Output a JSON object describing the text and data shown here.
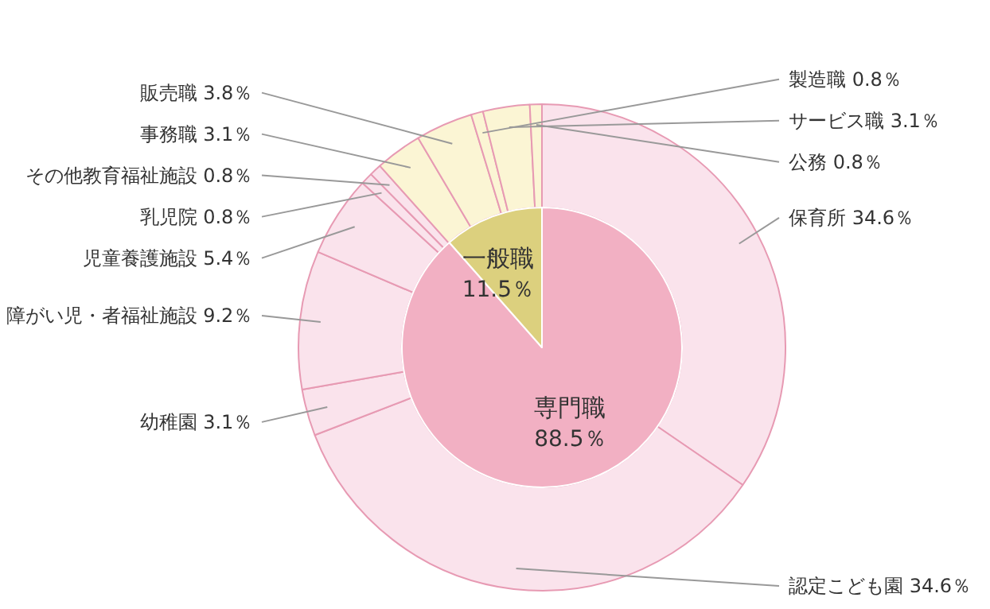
{
  "chart_data": {
    "type": "donut",
    "categories": [
      "保育所",
      "認定こども園",
      "幼稚園",
      "障がい児・者福祉施設",
      "児童養護施設",
      "乳児院",
      "その他教育福祉施設",
      "事務職",
      "販売職",
      "製造職",
      "サービス職",
      "公務",
      "専門職",
      "一般職"
    ],
    "colors": [
      "#fae3ec",
      "#fae3ec",
      "#fae3ec",
      "#fae3ec",
      "#fae3ec",
      "#fae3ec",
      "#fae3ec",
      "#fbf5d4",
      "#fbf5d4",
      "#fbf5d4",
      "#fbf5d4",
      "#fbf5d4",
      "#f2b0c3",
      "#dcd07e"
    ],
    "series": [
      {
        "values": [
          null,
          null,
          null,
          null,
          null,
          null,
          null,
          null,
          null,
          null,
          null,
          null,
          88.5,
          11.5
        ],
        "value_labels": [
          null,
          null,
          null,
          null,
          null,
          null,
          null,
          null,
          null,
          null,
          null,
          null,
          "88.5％",
          "11.5％"
        ]
      },
      {
        "values": [
          34.6,
          34.6,
          3.1,
          9.2,
          5.4,
          0.8,
          0.8,
          3.1,
          3.8,
          0.8,
          3.1,
          0.8,
          null,
          null
        ],
        "value_labels": [
          "34.6％",
          "34.6％",
          "3.1％",
          "9.2％",
          "5.4％",
          "0.8％",
          "0.8％",
          "3.1％",
          "3.8％",
          "0.8％",
          "3.1％",
          "0.8％",
          null,
          null
        ]
      }
    ]
  }
}
